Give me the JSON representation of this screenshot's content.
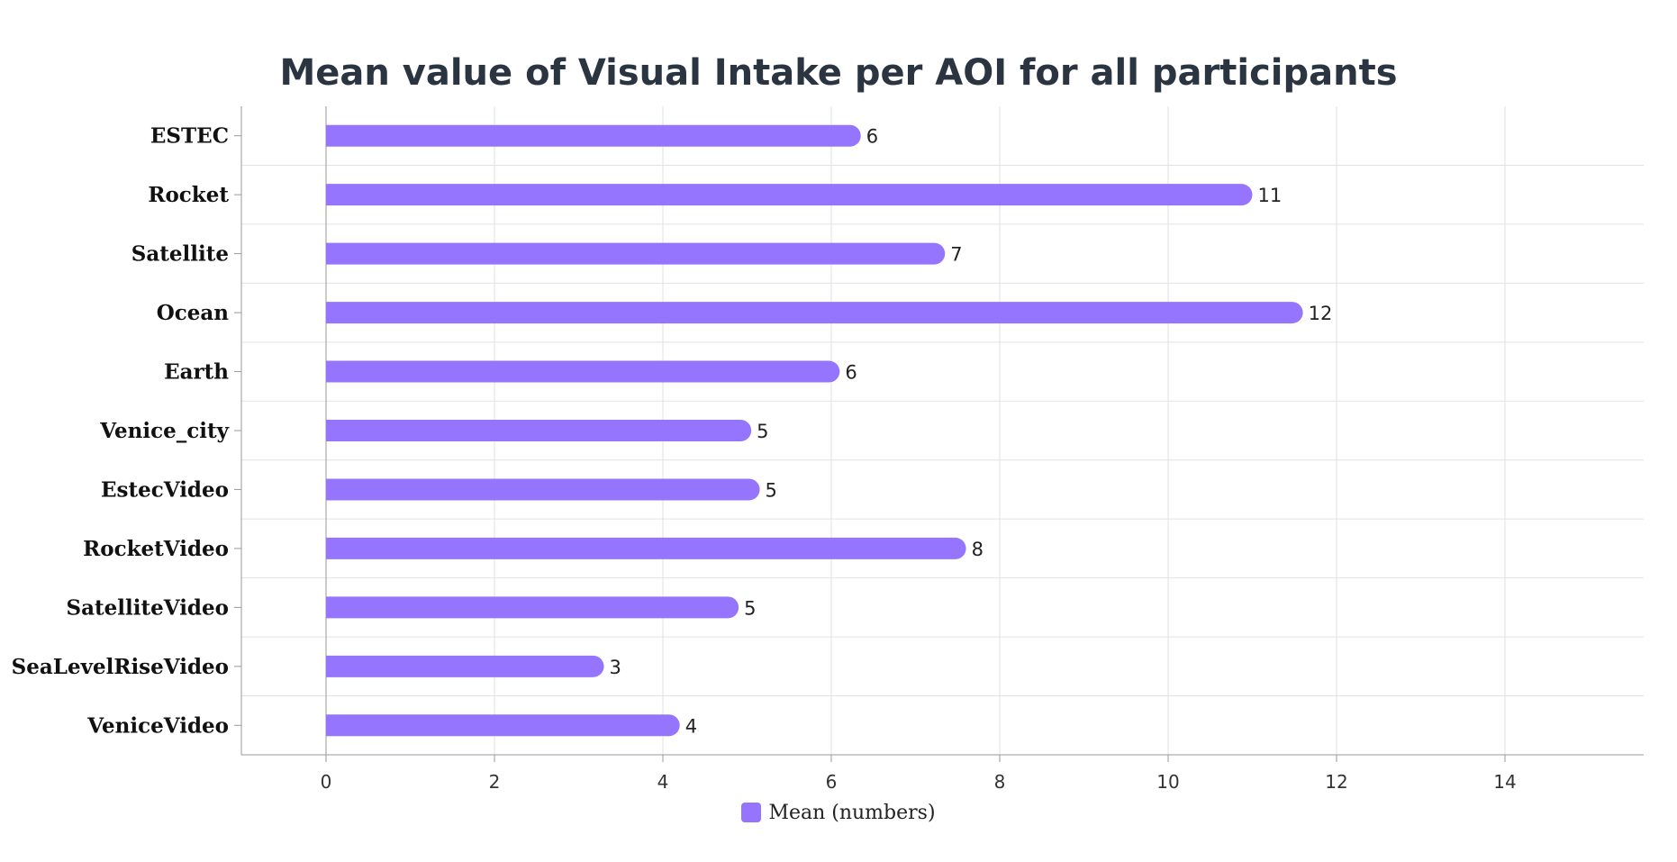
{
  "chart_data": {
    "type": "bar",
    "orientation": "horizontal",
    "title": "Mean value of Visual Intake per AOI for all participants",
    "xlabel": "",
    "ylabel": "",
    "categories": [
      "ESTEC",
      "Rocket",
      "Satellite",
      "Ocean",
      "Earth",
      "Venice_city",
      "EstecVideo",
      "RocketVideo",
      "SatelliteVideo",
      "SeaLevelRiseVideo",
      "VeniceVideo"
    ],
    "series": [
      {
        "name": "Mean (numbers)",
        "values": [
          6.35,
          11,
          7.35,
          11.6,
          6.1,
          5.05,
          5.15,
          7.6,
          4.9,
          3.3,
          4.2
        ],
        "labels": [
          "6",
          "11",
          "7",
          "12",
          "6",
          "5",
          "5",
          "8",
          "5",
          "3",
          "4"
        ]
      }
    ],
    "xlim": [
      -1,
      15.5
    ],
    "xticks": [
      0,
      2,
      4,
      6,
      8,
      10,
      12,
      14
    ],
    "grid": true,
    "legend": "bottom-center",
    "colors": {
      "bar": "#9575fd",
      "grid": "#e2e2e2",
      "axis": "#999999",
      "title": "#2b3441"
    }
  }
}
